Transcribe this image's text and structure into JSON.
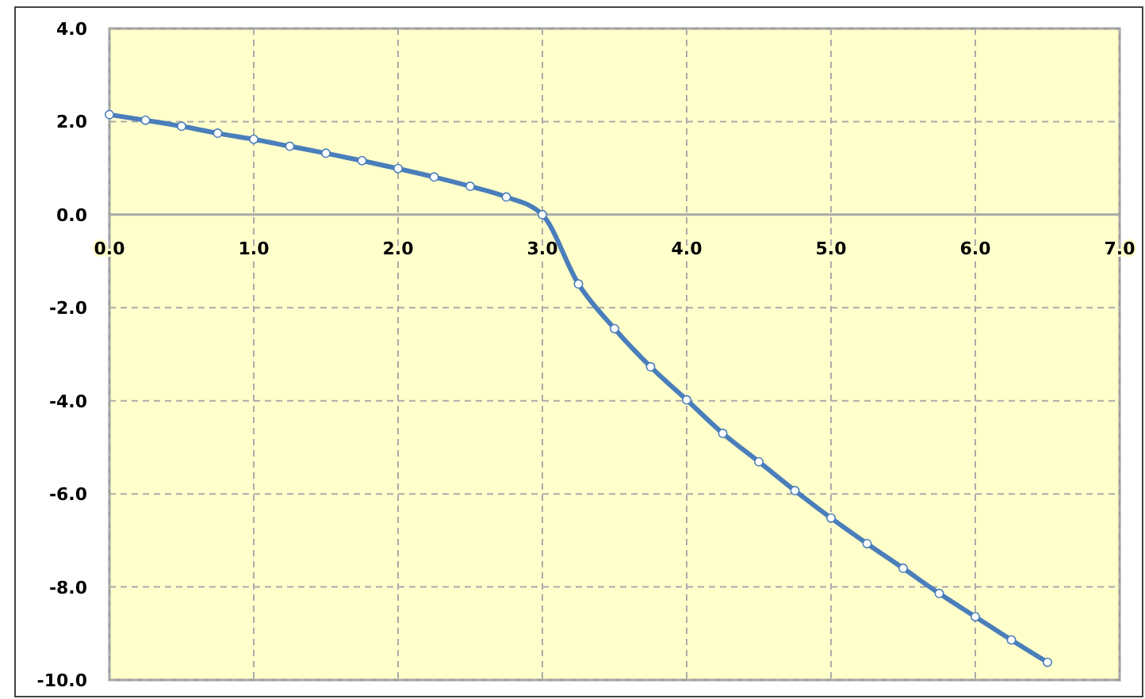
{
  "chart_data": {
    "type": "line",
    "x": [
      0,
      0.25,
      0.5,
      0.75,
      1,
      1.25,
      1.5,
      1.75,
      2,
      2.25,
      2.5,
      2.75,
      3,
      3.25,
      3.5,
      3.75,
      4,
      4.25,
      4.5,
      4.75,
      5,
      5.25,
      5.5,
      5.75,
      6,
      6.25,
      6.5
    ],
    "series": [
      {
        "color": "#4a7ebb",
        "values": [
          2.15,
          2.03,
          1.9,
          1.75,
          1.62,
          1.47,
          1.32,
          1.16,
          0.99,
          0.81,
          0.61,
          0.38,
          0,
          -1.49,
          -2.45,
          -3.27,
          -3.98,
          -4.7,
          -5.31,
          -5.93,
          -6.52,
          -7.07,
          -7.6,
          -8.14,
          -8.64,
          -9.14,
          -9.62
        ]
      }
    ],
    "xlim": [
      0,
      7
    ],
    "xticks": [
      {
        "value": 0,
        "label": "0.0"
      },
      {
        "value": 1,
        "label": "1.0"
      },
      {
        "value": 2,
        "label": "2.0"
      },
      {
        "value": 3,
        "label": "3.0"
      },
      {
        "value": 4,
        "label": "4.0"
      },
      {
        "value": 5,
        "label": "5.0"
      },
      {
        "value": 6,
        "label": "6.0"
      },
      {
        "value": 7,
        "label": "7.0"
      }
    ],
    "ylim": [
      -10,
      4
    ],
    "yticks": [
      {
        "value": -10,
        "label": "-10.0"
      },
      {
        "value": -8,
        "label": "-8.0"
      },
      {
        "value": -6,
        "label": "-6.0"
      },
      {
        "value": -4,
        "label": "-4.0"
      },
      {
        "value": -2,
        "label": "-2.0"
      },
      {
        "value": 0,
        "label": "0.0"
      },
      {
        "value": 2,
        "label": "2.0"
      },
      {
        "value": 4,
        "label": "4.0"
      }
    ],
    "grid": true,
    "marker": "circle",
    "line_style": "solid"
  }
}
